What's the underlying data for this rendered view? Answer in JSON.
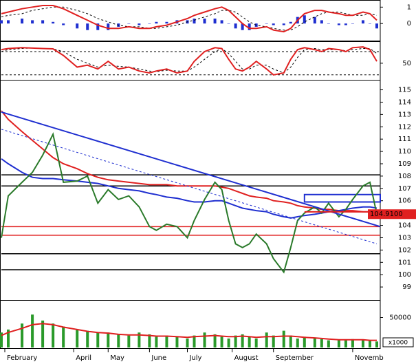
{
  "chart_data": {
    "type": "stock",
    "x": [
      0,
      2,
      6,
      9,
      12,
      15,
      18,
      22,
      25,
      28,
      31,
      34,
      37,
      40,
      43,
      45,
      48,
      51,
      54,
      56,
      59,
      62,
      64,
      66,
      68,
      70,
      72,
      74,
      77,
      79,
      82,
      84,
      86,
      88,
      91,
      93,
      95,
      98,
      100,
      102,
      105,
      107,
      109
    ],
    "xlim": [
      0,
      110
    ],
    "xticks": [
      {
        "value": 1,
        "label": "February"
      },
      {
        "value": 21,
        "label": "April"
      },
      {
        "value": 31,
        "label": "May"
      },
      {
        "value": 43,
        "label": "June"
      },
      {
        "value": 54,
        "label": "July"
      },
      {
        "value": 67,
        "label": "August"
      },
      {
        "value": 79,
        "label": "September"
      },
      {
        "value": 102,
        "label": "Novemb"
      }
    ],
    "panels": [
      {
        "ylim": [
          -1.0,
          1.35
        ],
        "yticks": [
          0,
          1
        ],
        "series": [
          {
            "style": "bar",
            "color": "#1f2fd0",
            "values": [
              0.2,
              0.2,
              0.3,
              0.2,
              0.2,
              0.1,
              -0.1,
              -0.3,
              -0.4,
              -0.4,
              -0.4,
              -0.2,
              0,
              -0.1,
              0,
              0.1,
              0.1,
              0.2,
              0.2,
              0.3,
              0.3,
              0.3,
              0.2,
              0,
              -0.3,
              -0.4,
              -0.4,
              -0.2,
              0,
              -0.1,
              -0.1,
              0.1,
              0.4,
              0.5,
              0.4,
              0.2,
              0,
              -0.1,
              -0.1,
              0,
              0.2,
              0,
              -0.3
            ]
          },
          {
            "style": "dashed",
            "color": "#000000",
            "values": [
              0.4,
              0.5,
              0.6,
              0.8,
              0.9,
              1.0,
              1.0,
              0.8,
              0.6,
              0.3,
              0.1,
              -0.1,
              -0.2,
              -0.2,
              -0.3,
              -0.3,
              -0.2,
              -0.1,
              0.1,
              0.2,
              0.4,
              0.6,
              0.8,
              0.8,
              0.7,
              0.4,
              0.1,
              -0.1,
              -0.2,
              -0.3,
              -0.4,
              -0.4,
              -0.2,
              0.1,
              0.4,
              0.6,
              0.7,
              0.7,
              0.6,
              0.5,
              0.5,
              0.6,
              0.5
            ]
          },
          {
            "style": "line",
            "color": "#e02020",
            "values": [
              0.6,
              0.7,
              0.9,
              1.0,
              1.1,
              1.1,
              0.9,
              0.5,
              0.2,
              -0.1,
              -0.3,
              -0.3,
              -0.2,
              -0.3,
              -0.3,
              -0.2,
              -0.1,
              0.1,
              0.3,
              0.5,
              0.7,
              0.9,
              1.0,
              0.8,
              0.4,
              0.0,
              -0.3,
              -0.3,
              -0.2,
              -0.4,
              -0.5,
              -0.3,
              0.2,
              0.6,
              0.8,
              0.8,
              0.7,
              0.6,
              0.5,
              0.5,
              0.7,
              0.6,
              0.2
            ]
          }
        ]
      },
      {
        "ylim": [
          9,
          103
        ],
        "yticks": [
          50
        ],
        "hlines": [
          {
            "value": 80,
            "color": "#000000",
            "dashed": true
          },
          {
            "value": 20,
            "color": "#000000",
            "dashed": true
          }
        ],
        "series": [
          {
            "style": "dashed",
            "color": "#000000",
            "values": [
              80,
              85,
              88,
              89,
              88,
              87,
              80,
              60,
              50,
              40,
              45,
              42,
              40,
              35,
              30,
              28,
              32,
              30,
              30,
              40,
              60,
              80,
              88,
              75,
              55,
              35,
              35,
              45,
              45,
              35,
              25,
              40,
              65,
              85,
              88,
              85,
              85,
              85,
              82,
              85,
              88,
              88,
              75
            ]
          },
          {
            "style": "line",
            "color": "#e02020",
            "values": [
              85,
              88,
              90,
              89,
              88,
              87,
              70,
              40,
              45,
              35,
              55,
              35,
              40,
              30,
              25,
              30,
              35,
              25,
              30,
              55,
              80,
              90,
              88,
              60,
              35,
              30,
              40,
              55,
              35,
              20,
              25,
              60,
              85,
              90,
              85,
              80,
              88,
              85,
              80,
              90,
              92,
              85,
              55
            ]
          }
        ]
      },
      {
        "ylim": [
          98,
          115.7
        ],
        "yticks": [
          99,
          100,
          101,
          102,
          103,
          104,
          105,
          106,
          107,
          108,
          109,
          110,
          111,
          112,
          113,
          114,
          115
        ],
        "hlines": [
          {
            "value": 108.1,
            "color": "#000000"
          },
          {
            "value": 107.2,
            "color": "#000000"
          },
          {
            "value": 101.7,
            "color": "#000000"
          },
          {
            "value": 100.4,
            "color": "#000000"
          },
          {
            "value": 103.9,
            "color": "#e02020"
          },
          {
            "value": 103.2,
            "color": "#e02020"
          }
        ],
        "trendlines": [
          {
            "x": [
              0,
              110
            ],
            "y": [
              113.2,
              103.9
            ],
            "color": "#1f2fd0"
          },
          {
            "x": [
              0,
              109
            ],
            "y": [
              111.8,
              102.5
            ],
            "color": "#1f2fd0",
            "dashed": true
          },
          {
            "x": [
              88,
              109
            ],
            "y": [
              105.1,
              105.1
            ],
            "color": "#e02020"
          }
        ],
        "boxes": [
          {
            "x": [
              88,
              110
            ],
            "y": [
              105.9,
              106.5
            ],
            "color": "#1f2fd0"
          }
        ],
        "series": [
          {
            "style": "line",
            "color": "#e02020",
            "values": [
              113.3,
              112.6,
              111.6,
              110.9,
              110.2,
              109.5,
              109.0,
              108.6,
              108.2,
              107.9,
              107.7,
              107.6,
              107.5,
              107.4,
              107.3,
              107.3,
              107.3,
              107.2,
              107.2,
              107.2,
              107.2,
              107.2,
              107.1,
              107.0,
              106.8,
              106.6,
              106.4,
              106.3,
              106.2,
              106.0,
              105.9,
              105.8,
              105.6,
              105.5,
              105.4,
              105.3,
              105.3,
              105.2,
              105.2,
              105.2,
              105.1,
              105.1,
              105.1
            ]
          },
          {
            "style": "line",
            "color": "#1f2fd0",
            "values": [
              109.4,
              109.0,
              108.3,
              107.9,
              107.8,
              107.8,
              107.7,
              107.6,
              107.5,
              107.4,
              107.2,
              107.0,
              106.9,
              106.8,
              106.6,
              106.5,
              106.3,
              106.2,
              106.0,
              105.9,
              105.9,
              106.0,
              106.0,
              105.8,
              105.6,
              105.4,
              105.3,
              105.2,
              105.1,
              104.9,
              104.7,
              104.6,
              104.7,
              104.8,
              104.9,
              105.0,
              105.1,
              105.2,
              105.3,
              105.4,
              105.5,
              105.5,
              105.4
            ]
          },
          {
            "style": "line",
            "color": "#2a7a2a",
            "values": [
              103.0,
              106.4,
              107.5,
              108.3,
              109.7,
              111.4,
              107.5,
              107.6,
              108.0,
              105.8,
              106.9,
              106.1,
              106.4,
              105.5,
              103.9,
              103.6,
              104.1,
              103.9,
              103.0,
              104.4,
              106.1,
              107.5,
              106.9,
              104.4,
              102.5,
              102.2,
              102.5,
              103.3,
              102.5,
              101.3,
              100.2,
              102.2,
              104.4,
              105.0,
              105.5,
              105.0,
              105.8,
              104.7,
              105.3,
              106.1,
              107.2,
              107.5,
              104.91
            ]
          }
        ],
        "last_value": {
          "value": 104.91,
          "label": "104.9100",
          "color": "#e02020"
        }
      },
      {
        "ylim": [
          0,
          77000
        ],
        "yticks": [
          50000
        ],
        "unit_label": "x1000",
        "series": [
          {
            "style": "bar",
            "color": "#2a9a2a",
            "values": [
              25000,
              30000,
              40000,
              55000,
              45000,
              40000,
              35000,
              30000,
              28000,
              25000,
              25000,
              22000,
              20000,
              25000,
              22000,
              18000,
              20000,
              18000,
              15000,
              20000,
              25000,
              22000,
              18000,
              15000,
              20000,
              22000,
              18000,
              15000,
              25000,
              20000,
              28000,
              20000,
              15000,
              18000,
              15000,
              14000,
              12000,
              13000,
              12000,
              14000,
              13000,
              12000,
              10000
            ]
          },
          {
            "style": "line",
            "color": "#e02020",
            "values": [
              20000,
              25000,
              32000,
              38000,
              40000,
              38000,
              34000,
              30000,
              27000,
              25000,
              24000,
              22000,
              21000,
              21000,
              20000,
              19000,
              19000,
              18000,
              17000,
              18000,
              19000,
              20000,
              19000,
              18000,
              18000,
              19000,
              18000,
              17000,
              18000,
              18000,
              19000,
              19000,
              18000,
              17000,
              16000,
              15000,
              14000,
              13000,
              13000,
              13000,
              13000,
              12000,
              12000
            ]
          }
        ]
      }
    ]
  }
}
